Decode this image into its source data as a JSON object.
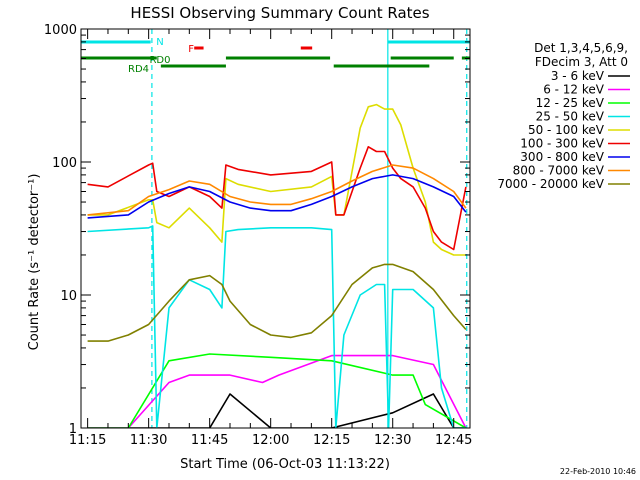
{
  "chart_data": {
    "type": "line",
    "title": "HESSI Observing Summary Count Rates",
    "xlabel": "Start Time (06-Oct-03 11:13:22)",
    "ylabel": "Count Rate (s⁻¹ detector⁻¹)",
    "x_ticks": [
      "11:15",
      "11:30",
      "11:45",
      "12:00",
      "12:15",
      "12:30",
      "12:45"
    ],
    "xlim_min": [
      13.37,
      109
    ],
    "y_ticks": [
      "1",
      "10",
      "100",
      "1000"
    ],
    "ylim": [
      1,
      1000
    ],
    "y_scale": "log",
    "legend_header": [
      "Det 1,3,4,5,6,9,",
      "FDecim 3, Att 0"
    ],
    "legend_position": "right",
    "series": [
      {
        "name": "3 - 6 keV",
        "color": "#000000",
        "x": [
          15,
          45,
          50,
          60,
          75,
          90,
          100,
          105,
          108
        ],
        "y": [
          1,
          1,
          1.8,
          1,
          1,
          1.3,
          1.8,
          1,
          1
        ]
      },
      {
        "name": "6 - 12 keV",
        "color": "#ff00ff",
        "x": [
          15,
          25,
          35,
          40,
          50,
          58,
          62,
          75,
          90,
          100,
          108
        ],
        "y": [
          1,
          1,
          2.2,
          2.5,
          2.5,
          2.2,
          2.5,
          3.5,
          3.5,
          3,
          1
        ]
      },
      {
        "name": "12 - 25 keV",
        "color": "#00ff00",
        "x": [
          15,
          25,
          35,
          45,
          60,
          75,
          90,
          95,
          98,
          108
        ],
        "y": [
          1,
          1,
          3.2,
          3.6,
          3.4,
          3.2,
          2.5,
          2.5,
          1.5,
          1
        ]
      },
      {
        "name": "25 - 50 keV",
        "color": "#00e5e5",
        "x": [
          15,
          30,
          31,
          32,
          35,
          40,
          45,
          48,
          49,
          52,
          60,
          70,
          75,
          76,
          78,
          82,
          86,
          88,
          89,
          90,
          95,
          100,
          102,
          105,
          108
        ],
        "y": [
          30,
          32,
          33,
          1,
          8,
          13,
          11,
          8,
          30,
          31,
          32,
          32,
          31,
          1,
          5,
          10,
          12,
          12,
          1,
          11,
          11,
          8,
          2,
          1,
          1
        ]
      },
      {
        "name": "50 - 100 keV",
        "color": "#dddd00",
        "x": [
          15,
          20,
          30,
          31,
          32,
          35,
          40,
          45,
          48,
          49,
          52,
          60,
          70,
          75,
          76,
          78,
          82,
          84,
          86,
          88,
          90,
          92,
          95,
          98,
          100,
          102,
          105,
          108
        ],
        "y": [
          40,
          40,
          52,
          52,
          35,
          32,
          45,
          32,
          25,
          75,
          68,
          60,
          65,
          78,
          40,
          40,
          180,
          260,
          270,
          250,
          250,
          190,
          90,
          50,
          25,
          22,
          20,
          20
        ]
      },
      {
        "name": "100 - 300 keV",
        "color": "#ee0000",
        "x": [
          15,
          20,
          30,
          31,
          32,
          35,
          40,
          45,
          48,
          49,
          52,
          60,
          70,
          75,
          76,
          78,
          82,
          84,
          86,
          88,
          90,
          92,
          95,
          98,
          100,
          102,
          105,
          108
        ],
        "y": [
          68,
          65,
          95,
          98,
          60,
          55,
          65,
          55,
          45,
          95,
          88,
          80,
          85,
          100,
          40,
          40,
          90,
          130,
          120,
          120,
          90,
          75,
          65,
          45,
          30,
          25,
          22,
          65
        ]
      },
      {
        "name": "300 - 800 keV",
        "color": "#0000ee",
        "x": [
          15,
          25,
          30,
          35,
          40,
          45,
          50,
          55,
          60,
          65,
          70,
          75,
          80,
          85,
          88,
          90,
          95,
          100,
          105,
          108
        ],
        "y": [
          38,
          40,
          50,
          58,
          65,
          60,
          50,
          45,
          43,
          43,
          48,
          55,
          65,
          75,
          78,
          80,
          75,
          65,
          55,
          42
        ]
      },
      {
        "name": "800 - 7000 keV",
        "color": "#ff8800",
        "x": [
          15,
          25,
          30,
          35,
          40,
          45,
          50,
          55,
          60,
          65,
          70,
          75,
          80,
          85,
          90,
          95,
          100,
          105,
          108
        ],
        "y": [
          40,
          43,
          55,
          62,
          72,
          68,
          55,
          50,
          48,
          48,
          53,
          60,
          72,
          85,
          95,
          90,
          75,
          60,
          45
        ]
      },
      {
        "name": "7000 - 20000 keV",
        "color": "#808000",
        "x": [
          15,
          20,
          25,
          30,
          35,
          40,
          45,
          48,
          50,
          55,
          60,
          65,
          70,
          75,
          80,
          85,
          88,
          90,
          95,
          100,
          105,
          108
        ],
        "y": [
          4.5,
          4.5,
          5,
          6,
          9,
          13,
          14,
          12,
          9,
          6,
          5,
          4.8,
          5.2,
          7,
          12,
          16,
          17,
          17,
          15,
          11,
          7,
          5.5
        ]
      }
    ],
    "annotations": [
      {
        "text": "N",
        "color": "#00e5e5"
      },
      {
        "text": "F",
        "color": "#ee0000"
      },
      {
        "text": "RD0",
        "color": "#008000"
      },
      {
        "text": "RD4",
        "color": "#008000"
      }
    ],
    "flag_bars": [
      {
        "label": "N",
        "color": "#00e5e5",
        "level": 1,
        "segments": [
          [
            13.4,
            30.5
          ],
          [
            88.8,
            109
          ]
        ]
      },
      {
        "label": "F",
        "color": "#ee0000",
        "level": 2,
        "segments": [
          [
            41.2,
            43.5
          ],
          [
            67.4,
            70.2
          ]
        ]
      },
      {
        "label": "RD0",
        "color": "#008000",
        "level": 3,
        "segments": [
          [
            13.4,
            32
          ],
          [
            49,
            74.6
          ],
          [
            89.5,
            105
          ],
          [
            107,
            109
          ]
        ]
      },
      {
        "label": "RD4",
        "color": "#008000",
        "level": 4,
        "segments": [
          [
            33,
            49
          ],
          [
            75.5,
            99
          ]
        ]
      }
    ],
    "vertical_markers": [
      {
        "style": "dashed",
        "color": "#00e5e5",
        "x": 30.8
      },
      {
        "style": "dashed",
        "color": "#00e5e5",
        "x": 108.2
      },
      {
        "style": "solid",
        "color": "#00e5e5",
        "x": 88.8
      }
    ],
    "date_stamp": "22-Feb-2010 10:46"
  }
}
